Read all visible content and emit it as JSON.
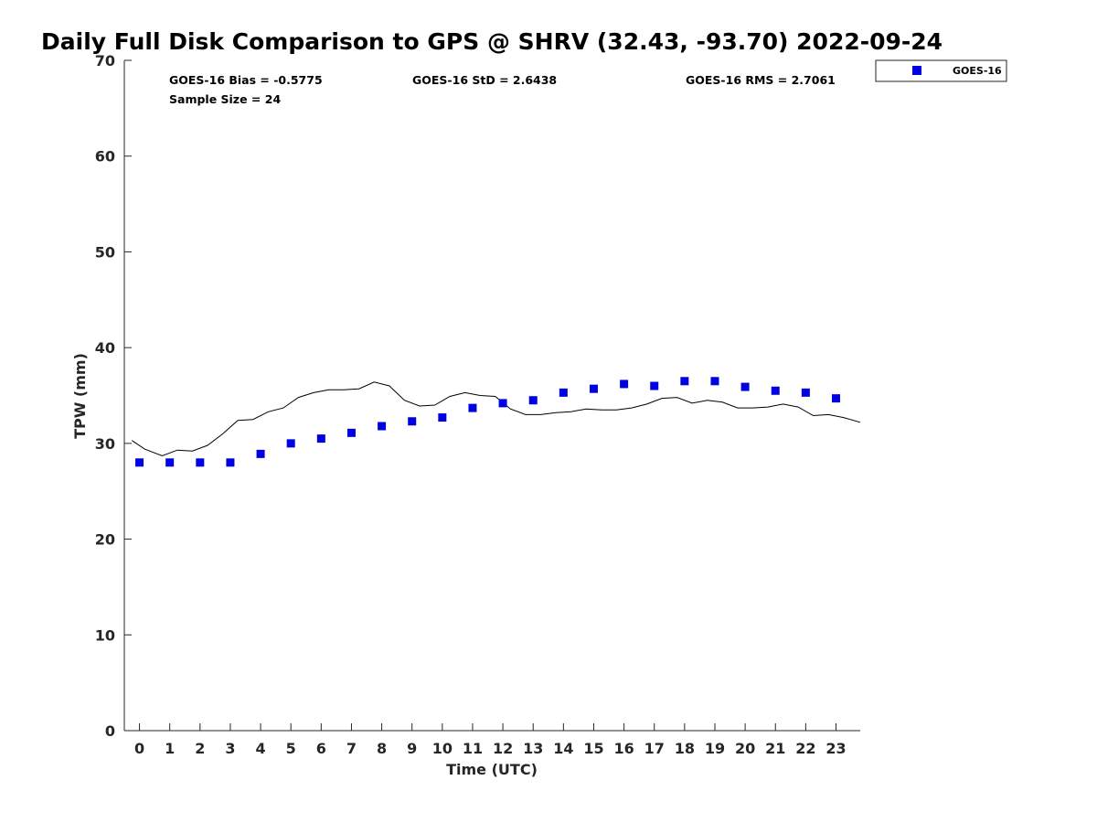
{
  "chart_data": {
    "type": "scatter",
    "title": "Daily Full Disk Comparison to GPS @ SHRV (32.43, -93.70) 2022-09-24",
    "xlabel": "Time (UTC)",
    "ylabel": "TPW (mm)",
    "xlim": [
      -0.5,
      23.8
    ],
    "ylim": [
      0,
      70
    ],
    "x_ticks": [
      0,
      1,
      2,
      3,
      4,
      5,
      6,
      7,
      8,
      9,
      10,
      11,
      12,
      13,
      14,
      15,
      16,
      17,
      18,
      19,
      20,
      21,
      22,
      23
    ],
    "y_ticks": [
      0,
      10,
      20,
      30,
      40,
      50,
      60,
      70
    ],
    "grid": false,
    "legend": {
      "placement": "outside-top-right",
      "entries": [
        "GOES-16"
      ]
    },
    "stats": {
      "bias": "GOES-16 Bias = -0.5775",
      "std": "GOES-16 StD = 2.6438",
      "rms": "GOES-16 RMS = 2.7061",
      "sample": "Sample Size = 24"
    },
    "series": [
      {
        "name": "GOES-16",
        "kind": "scatter",
        "marker": "square",
        "color": "#0000e0",
        "x": [
          0,
          1,
          2,
          3,
          4,
          5,
          6,
          7,
          8,
          9,
          10,
          11,
          12,
          13,
          14,
          15,
          16,
          17,
          18,
          19,
          20,
          21,
          22,
          23
        ],
        "y": [
          28.0,
          28.0,
          28.0,
          28.0,
          28.9,
          30.0,
          30.5,
          31.1,
          31.8,
          32.3,
          32.7,
          33.7,
          34.2,
          34.5,
          35.3,
          35.7,
          36.2,
          36.0,
          36.5,
          36.5,
          35.9,
          35.5,
          35.3,
          34.7
        ]
      },
      {
        "kind": "line",
        "color": "#000000",
        "x": [
          -0.25,
          0.17,
          0.75,
          1.25,
          1.75,
          2.25,
          2.75,
          3.25,
          3.75,
          4.25,
          4.75,
          5.25,
          5.75,
          6.25,
          6.75,
          7.25,
          7.75,
          8.25,
          8.75,
          9.25,
          9.75,
          10.25,
          10.75,
          11.25,
          11.75,
          12.25,
          12.75,
          13.25,
          13.75,
          14.25,
          14.75,
          15.25,
          15.75,
          16.25,
          16.75,
          17.25,
          17.75,
          18.25,
          18.75,
          19.25,
          19.75,
          20.25,
          20.75,
          21.25,
          21.75,
          22.25,
          22.75,
          23.25,
          23.8
        ],
        "y": [
          30.3,
          29.4,
          28.7,
          29.3,
          29.2,
          29.8,
          31.0,
          32.4,
          32.5,
          33.3,
          33.7,
          34.8,
          35.3,
          35.6,
          35.6,
          35.7,
          36.4,
          36.0,
          34.5,
          33.9,
          34.0,
          34.9,
          35.3,
          35.0,
          34.9,
          33.6,
          33.0,
          33.0,
          33.2,
          33.3,
          33.6,
          33.5,
          33.5,
          33.7,
          34.1,
          34.7,
          34.8,
          34.2,
          34.5,
          34.3,
          33.7,
          33.7,
          33.8,
          34.1,
          33.8,
          32.9,
          33.0,
          32.7,
          32.2
        ]
      }
    ]
  }
}
